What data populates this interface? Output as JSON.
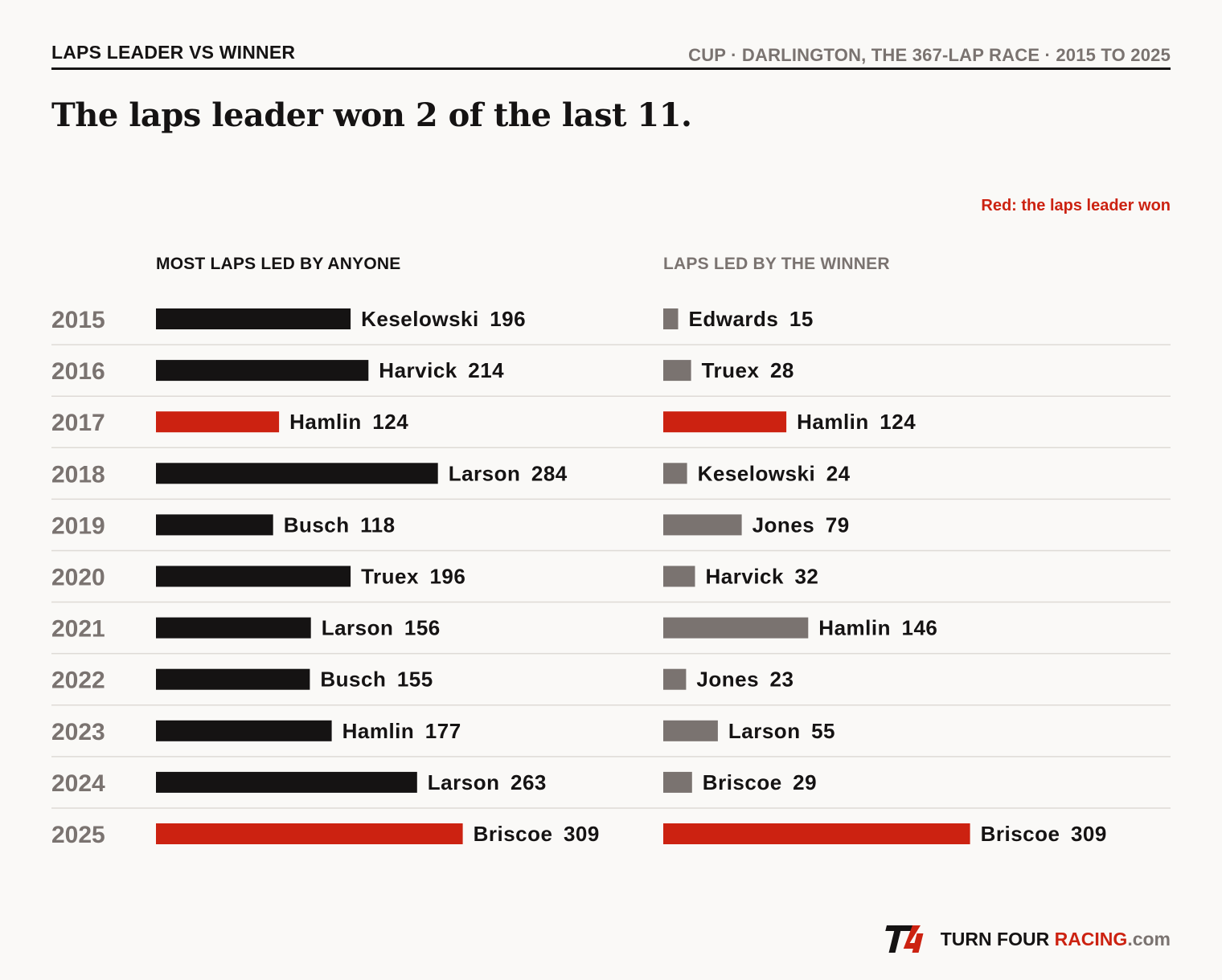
{
  "header": {
    "kicker": "LAPS LEADER VS WINNER",
    "meta": "CUP · DARLINGTON, THE 367-LAP RACE · 2015 TO 2025",
    "headline": "The laps leader won 2 of the last 11.",
    "legend": "Red: the laps leader won"
  },
  "columns": {
    "left": "MOST LAPS LED BY ANYONE",
    "right": "LAPS LED BY THE WINNER"
  },
  "colors": {
    "leader_bar": "#151313",
    "winner_bar": "#7a7370",
    "highlight": "#cc2211",
    "row_rule": "#dedad6"
  },
  "chart_data": {
    "type": "bar",
    "orientation": "horizontal",
    "categories": [
      "2015",
      "2016",
      "2017",
      "2018",
      "2019",
      "2020",
      "2021",
      "2022",
      "2023",
      "2024",
      "2025"
    ],
    "series": [
      {
        "name": "MOST LAPS LED BY ANYONE",
        "drivers": [
          "Keselowski",
          "Harvick",
          "Hamlin",
          "Larson",
          "Busch",
          "Truex",
          "Larson",
          "Busch",
          "Hamlin",
          "Larson",
          "Briscoe"
        ],
        "values": [
          196,
          214,
          124,
          284,
          118,
          196,
          156,
          155,
          177,
          263,
          309
        ]
      },
      {
        "name": "LAPS LED BY THE WINNER",
        "drivers": [
          "Edwards",
          "Truex",
          "Hamlin",
          "Keselowski",
          "Jones",
          "Harvick",
          "Hamlin",
          "Jones",
          "Larson",
          "Briscoe",
          "Briscoe"
        ],
        "values": [
          15,
          28,
          124,
          24,
          79,
          32,
          146,
          23,
          55,
          29,
          309
        ]
      }
    ],
    "leader_won": [
      false,
      false,
      true,
      false,
      false,
      false,
      false,
      false,
      false,
      false,
      true
    ],
    "xlim": [
      0,
      367
    ]
  },
  "brand": {
    "logo": "T4",
    "name": "TURN FOUR ",
    "accent": "RACING",
    "suffix": ".com"
  }
}
